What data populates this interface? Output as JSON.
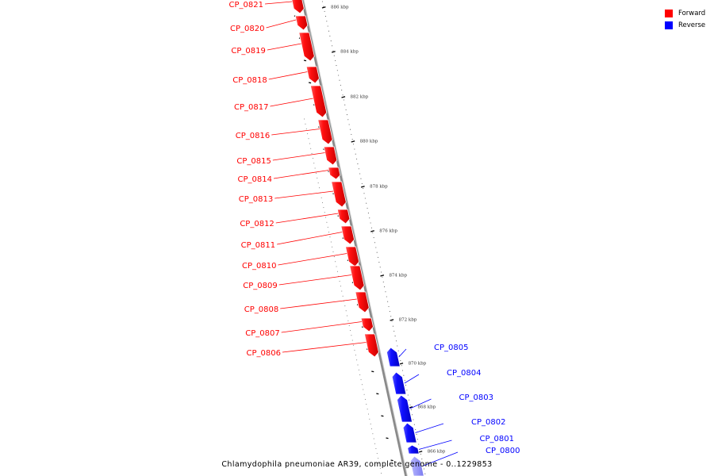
{
  "colors": {
    "forward": "#ff0000",
    "reverse": "#0000ff",
    "backbone": "#8a8a8a"
  },
  "legend": {
    "forward_label": "Forward",
    "reverse_label": "Reverse"
  },
  "caption": "Chlamydophila pneumoniae AR39, complete genome - 0..1229853",
  "ticks": [
    "866 kbp",
    "868 kbp",
    "870 kbp",
    "872 kbp",
    "874 kbp",
    "876 kbp",
    "878 kbp",
    "880 kbp",
    "882 kbp",
    "884 kbp",
    "886 kbp"
  ],
  "genes": [
    {
      "label": "CP_0821",
      "strand": "forward"
    },
    {
      "label": "CP_0820",
      "strand": "forward"
    },
    {
      "label": "CP_0819",
      "strand": "forward"
    },
    {
      "label": "CP_0818",
      "strand": "forward"
    },
    {
      "label": "CP_0817",
      "strand": "forward"
    },
    {
      "label": "CP_0816",
      "strand": "forward"
    },
    {
      "label": "CP_0815",
      "strand": "forward"
    },
    {
      "label": "CP_0814",
      "strand": "forward"
    },
    {
      "label": "CP_0813",
      "strand": "forward"
    },
    {
      "label": "CP_0812",
      "strand": "forward"
    },
    {
      "label": "CP_0811",
      "strand": "forward"
    },
    {
      "label": "CP_0810",
      "strand": "forward"
    },
    {
      "label": "CP_0809",
      "strand": "forward"
    },
    {
      "label": "CP_0808",
      "strand": "forward"
    },
    {
      "label": "CP_0807",
      "strand": "forward"
    },
    {
      "label": "CP_0806",
      "strand": "forward"
    },
    {
      "label": "CP_0805",
      "strand": "reverse"
    },
    {
      "label": "CP_0804",
      "strand": "reverse"
    },
    {
      "label": "CP_0803",
      "strand": "reverse"
    },
    {
      "label": "CP_0802",
      "strand": "reverse"
    },
    {
      "label": "CP_0801",
      "strand": "reverse"
    },
    {
      "label": "CP_0800",
      "strand": "reverse"
    }
  ]
}
